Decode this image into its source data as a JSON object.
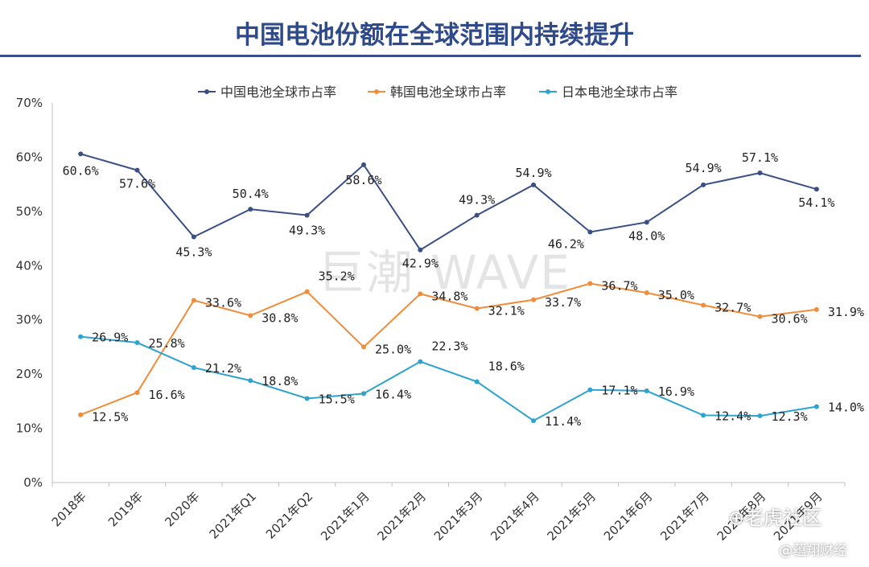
{
  "header": {
    "title": "中国电池份额在全球范围内持续提升"
  },
  "watermark": "巨潮 WAVE",
  "corner_marks": [
    "⊕老虎社区",
    "@蕴翔财经"
  ],
  "chart_data": {
    "type": "line",
    "title": "中国电池份额在全球范围内持续提升",
    "categories": [
      "2018年",
      "2019年",
      "2020年",
      "2021年Q1",
      "2021年Q2",
      "2021年1月",
      "2021年2月",
      "2021年3月",
      "2021年4月",
      "2021年5月",
      "2021年6月",
      "2021年7月",
      "2021年8月",
      "2021年9月"
    ],
    "x_tick_labels": [
      "2018年",
      "2019年",
      "2020年",
      "2021年Q1",
      "2021年Q2",
      "2021年1月",
      "2021年2月",
      "2021年3月",
      "2021年4月",
      "2021年5月",
      "2021年6月",
      "2021年7月",
      "2021年8月",
      "2021年9月"
    ],
    "y_ticks": [
      "0%",
      "10%",
      "20%",
      "30%",
      "40%",
      "50%",
      "60%",
      "70%"
    ],
    "ylim": [
      0,
      70
    ],
    "grid": false,
    "legend_position": "top",
    "series": [
      {
        "name": "中国电池全球市占率",
        "color": "#3b4f87",
        "values": [
          60.6,
          57.6,
          45.3,
          50.4,
          49.3,
          58.6,
          42.9,
          49.3,
          54.9,
          46.2,
          48.0,
          54.9,
          57.1,
          54.1
        ],
        "labels": [
          "60.6%",
          "57.6%",
          "45.3%",
          "50.4%",
          "49.3%",
          "58.6%",
          "42.9%",
          "49.3%",
          "54.9%",
          "46.2%",
          "48.0%",
          "54.9%",
          "57.1%",
          "54.1%"
        ]
      },
      {
        "name": "韩国电池全球市占率",
        "color": "#f08c3a",
        "values": [
          12.5,
          16.6,
          33.6,
          30.8,
          35.2,
          25.0,
          34.8,
          32.1,
          33.7,
          36.7,
          35.0,
          32.7,
          30.6,
          31.9
        ],
        "labels": [
          "12.5%",
          "16.6%",
          "33.6%",
          "30.8%",
          "35.2%",
          "25.0%",
          "34.8%",
          "32.1%",
          "33.7%",
          "36.7%",
          "35.0%",
          "32.7%",
          "30.6%",
          "31.9%"
        ]
      },
      {
        "name": "日本电池全球市占率",
        "color": "#2ea3d0",
        "values": [
          26.9,
          25.8,
          21.2,
          18.8,
          15.5,
          16.4,
          22.3,
          18.6,
          11.4,
          17.1,
          16.9,
          12.4,
          12.3,
          14.0
        ],
        "labels": [
          "26.9%",
          "25.8%",
          "21.2%",
          "18.8%",
          "15.5%",
          "16.4%",
          "22.3%",
          "18.6%",
          "11.4%",
          "17.1%",
          "16.9%",
          "12.4%",
          "12.3%",
          "14.0%"
        ]
      }
    ]
  }
}
